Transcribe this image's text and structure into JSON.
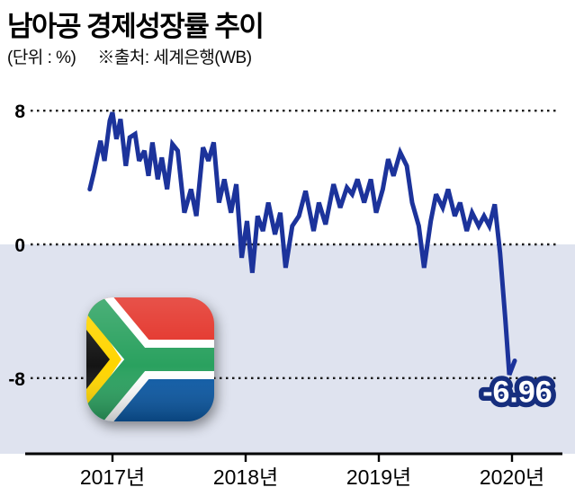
{
  "header": {
    "title": "남아공 경제성장률 추이",
    "unit_label": "(단위 : %)",
    "source_label": "※출처: 세계은행(WB)"
  },
  "flag_icon": {
    "country": "South Africa",
    "colors": {
      "red": "#e33127",
      "blue": "#0b59a5",
      "green": "#2aa15f",
      "gold": "#ffd500",
      "black": "#141414",
      "white": "#ffffff"
    }
  },
  "chart_data": {
    "type": "line",
    "title": "남아공 경제성장률 추이",
    "ylabel": "%",
    "yticks": [
      8,
      0,
      -8
    ],
    "ylim": [
      -12.5,
      9.3
    ],
    "xlim": [
      2016.8,
      2020.35
    ],
    "x_tick_years": [
      2017,
      2018,
      2019,
      2020
    ],
    "x_tick_labels": [
      "2017년",
      "2018년",
      "2019년",
      "2020년"
    ],
    "grid": "horizontal-dotted",
    "legend_position": "none",
    "line_color": "#1c339b",
    "grid_color": "#1a1a1a",
    "label_text_color": "#ffffff",
    "label_outline_color": "#162e7e",
    "shade_below_zero_color": "#dfe3ef",
    "last_value_label": "-6.96",
    "series": [
      {
        "name": "남아공 경제성장률(%)",
        "points": [
          [
            2016.83,
            3.3
          ],
          [
            2016.86,
            4.3
          ],
          [
            2016.91,
            6.2
          ],
          [
            2016.94,
            5.0
          ],
          [
            2016.98,
            7.4
          ],
          [
            2017.0,
            7.9
          ],
          [
            2017.03,
            6.3
          ],
          [
            2017.06,
            7.5
          ],
          [
            2017.1,
            4.7
          ],
          [
            2017.13,
            6.4
          ],
          [
            2017.17,
            6.6
          ],
          [
            2017.2,
            5.0
          ],
          [
            2017.24,
            5.6
          ],
          [
            2017.27,
            4.1
          ],
          [
            2017.3,
            6.1
          ],
          [
            2017.34,
            3.9
          ],
          [
            2017.37,
            5.2
          ],
          [
            2017.41,
            3.3
          ],
          [
            2017.45,
            6.0
          ],
          [
            2017.49,
            5.6
          ],
          [
            2017.54,
            1.9
          ],
          [
            2017.59,
            3.3
          ],
          [
            2017.63,
            1.7
          ],
          [
            2017.68,
            5.8
          ],
          [
            2017.72,
            5.0
          ],
          [
            2017.76,
            6.1
          ],
          [
            2017.8,
            2.5
          ],
          [
            2017.84,
            3.9
          ],
          [
            2017.89,
            1.9
          ],
          [
            2017.93,
            3.6
          ],
          [
            2017.97,
            -0.8
          ],
          [
            2018.01,
            1.4
          ],
          [
            2018.05,
            -1.7
          ],
          [
            2018.09,
            1.7
          ],
          [
            2018.13,
            0.8
          ],
          [
            2018.17,
            2.5
          ],
          [
            2018.22,
            0.6
          ],
          [
            2018.26,
            1.9
          ],
          [
            2018.3,
            -1.4
          ],
          [
            2018.35,
            1.1
          ],
          [
            2018.4,
            1.7
          ],
          [
            2018.45,
            3.2
          ],
          [
            2018.51,
            0.8
          ],
          [
            2018.55,
            2.5
          ],
          [
            2018.6,
            1.2
          ],
          [
            2018.66,
            3.6
          ],
          [
            2018.71,
            2.2
          ],
          [
            2018.76,
            3.4
          ],
          [
            2018.8,
            3.0
          ],
          [
            2018.84,
            3.9
          ],
          [
            2018.89,
            2.5
          ],
          [
            2018.94,
            3.9
          ],
          [
            2018.98,
            1.9
          ],
          [
            2019.03,
            3.3
          ],
          [
            2019.07,
            5.1
          ],
          [
            2019.11,
            4.1
          ],
          [
            2019.16,
            5.5
          ],
          [
            2019.21,
            4.7
          ],
          [
            2019.25,
            2.5
          ],
          [
            2019.3,
            1.1
          ],
          [
            2019.34,
            -1.4
          ],
          [
            2019.39,
            1.4
          ],
          [
            2019.43,
            3.0
          ],
          [
            2019.48,
            2.2
          ],
          [
            2019.52,
            3.3
          ],
          [
            2019.57,
            1.7
          ],
          [
            2019.61,
            2.5
          ],
          [
            2019.66,
            0.8
          ],
          [
            2019.7,
            1.9
          ],
          [
            2019.75,
            1.1
          ],
          [
            2019.79,
            1.7
          ],
          [
            2019.83,
            1.1
          ],
          [
            2019.87,
            2.4
          ],
          [
            2019.91,
            -0.5
          ],
          [
            2019.95,
            -4.5
          ],
          [
            2019.98,
            -7.8
          ],
          [
            2020.02,
            -6.96
          ]
        ]
      }
    ]
  }
}
